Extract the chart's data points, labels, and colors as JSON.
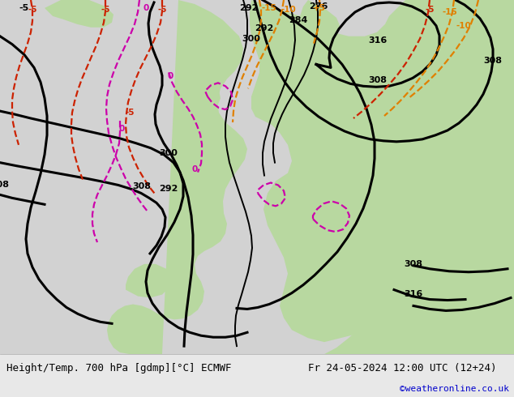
{
  "title_left": "Height/Temp. 700 hPa [gdmp][°C] ECMWF",
  "title_right": "Fr 24-05-2024 12:00 UTC (12+24)",
  "credit": "©weatheronline.co.uk",
  "fig_width": 6.34,
  "fig_height": 4.9,
  "dpi": 100,
  "sea_color": "#d2d2d2",
  "land_color": "#b8d8a0",
  "mountain_color": "#b8b8a8",
  "bar_color": "#e8e8e8",
  "title_fontsize": 9,
  "credit_fontsize": 8,
  "credit_color": "#0000cc",
  "black_lw": 2.2,
  "black_lw_thin": 1.4,
  "temp_lw": 1.6,
  "black_color": "#000000",
  "orange_color": "#e08000",
  "red_color": "#cc2200",
  "magenta_color": "#cc00aa",
  "label_fs": 8
}
